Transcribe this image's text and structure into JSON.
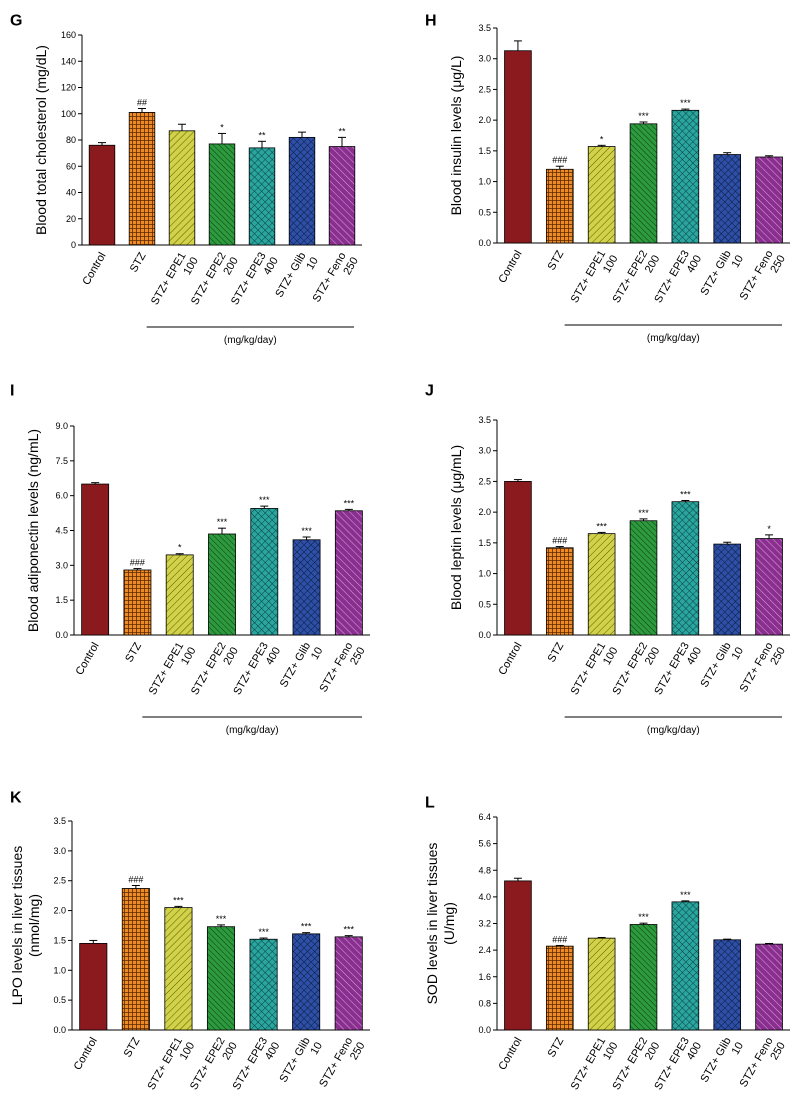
{
  "figure": {
    "group_label": "(mg/kg/day)"
  },
  "categories": [
    "Control",
    "STZ",
    "STZ+ EPE1|100",
    "STZ+ EPE2|200",
    "STZ+ EPE3|400",
    "STZ+ Glib|10",
    "STZ+ Feno|250"
  ],
  "colors": [
    "#8b1a1f",
    "#f08a24",
    "#d2d24a",
    "#2e9a3e",
    "#2aa6a0",
    "#2e4fa6",
    "#8a2f8f"
  ],
  "chart_data": [
    {
      "panel": "G",
      "type": "bar",
      "ylabel": "Blood total cholesterol (mg/dL)",
      "ylim": [
        0,
        160
      ],
      "yticks": [
        "0",
        "20",
        "40",
        "60",
        "80",
        "100",
        "120",
        "140",
        "160"
      ],
      "values": [
        76,
        101,
        87,
        77,
        74,
        82,
        75
      ],
      "errors": [
        2,
        3,
        5,
        8,
        5,
        4,
        7
      ],
      "significance": [
        "",
        "##",
        "",
        "*",
        "**",
        "",
        "**"
      ]
    },
    {
      "panel": "H",
      "type": "bar",
      "ylabel": "Blood insulin levels (μg/L)",
      "ylim": [
        0,
        3.5
      ],
      "yticks": [
        "0.0",
        "0.5",
        "1.0",
        "1.5",
        "2.0",
        "2.5",
        "3.0",
        "3.5"
      ],
      "values": [
        3.13,
        1.2,
        1.57,
        1.94,
        2.16,
        1.44,
        1.4
      ],
      "errors": [
        0.16,
        0.05,
        0.02,
        0.03,
        0.02,
        0.03,
        0.02
      ],
      "significance": [
        "",
        "###",
        "*",
        "***",
        "***",
        "",
        ""
      ]
    },
    {
      "panel": "I",
      "type": "bar",
      "ylabel": "Blood adiponectin levels (ng/mL)",
      "ylim": [
        0,
        9
      ],
      "yticks": [
        "0.0",
        "1.5",
        "3.0",
        "4.5",
        "6.0",
        "7.5",
        "9.0"
      ],
      "values": [
        6.5,
        2.8,
        3.45,
        4.35,
        5.45,
        4.1,
        5.35
      ],
      "errors": [
        0.06,
        0.06,
        0.05,
        0.25,
        0.1,
        0.12,
        0.06
      ],
      "significance": [
        "",
        "###",
        "*",
        "***",
        "***",
        "***",
        "***"
      ]
    },
    {
      "panel": "J",
      "type": "bar",
      "ylabel": "Blood leptin levels (μg/mL)",
      "ylim": [
        0,
        3.5
      ],
      "yticks": [
        "0.0",
        "0.5",
        "1.0",
        "1.5",
        "2.0",
        "2.5",
        "3.0",
        "3.5"
      ],
      "values": [
        2.5,
        1.42,
        1.65,
        1.86,
        2.17,
        1.48,
        1.57
      ],
      "errors": [
        0.03,
        0.02,
        0.02,
        0.03,
        0.02,
        0.03,
        0.06
      ],
      "significance": [
        "",
        "###",
        "***",
        "***",
        "***",
        "",
        "*"
      ]
    },
    {
      "panel": "K",
      "type": "bar",
      "ylabel": "LPO levels in liver tissues|(nmol/mg)",
      "ylim": [
        0,
        3.5
      ],
      "yticks": [
        "0.0",
        "0.5",
        "1.0",
        "1.5",
        "2.0",
        "2.5",
        "3.0",
        "3.5"
      ],
      "values": [
        1.45,
        2.37,
        2.05,
        1.73,
        1.52,
        1.61,
        1.56
      ],
      "errors": [
        0.05,
        0.05,
        0.02,
        0.03,
        0.02,
        0.02,
        0.02
      ],
      "significance": [
        "",
        "###",
        "***",
        "***",
        "***",
        "***",
        "***"
      ]
    },
    {
      "panel": "L",
      "type": "bar",
      "ylabel": "SOD levels in liver tissues|(U/mg)",
      "ylim": [
        0,
        6.4
      ],
      "yticks": [
        "0.0",
        "0.8",
        "1.6",
        "2.4",
        "3.2",
        "4.0",
        "4.8",
        "5.6",
        "6.4"
      ],
      "values": [
        4.48,
        2.52,
        2.76,
        3.17,
        3.85,
        2.71,
        2.58
      ],
      "errors": [
        0.08,
        0.02,
        0.02,
        0.04,
        0.03,
        0.02,
        0.02
      ],
      "significance": [
        "",
        "###",
        "",
        "***",
        "***",
        "",
        ""
      ]
    }
  ]
}
